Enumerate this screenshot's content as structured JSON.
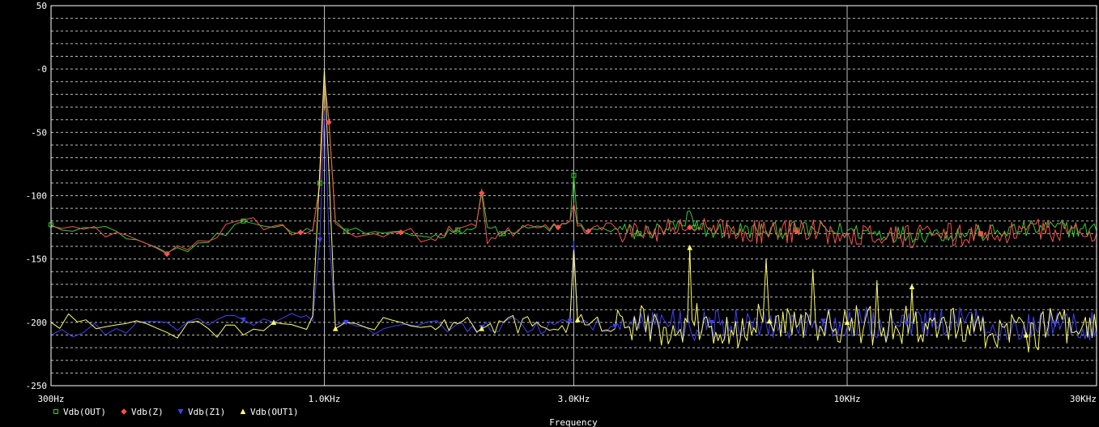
{
  "chart_data": {
    "type": "line",
    "title": "",
    "xlabel": "Frequency",
    "ylabel": "",
    "x_scale": "log",
    "xlim_hz": [
      300,
      30000
    ],
    "ylim": [
      -250,
      50
    ],
    "grid": true,
    "legend_position": "bottom-left",
    "x_ticks": [
      {
        "hz": 300,
        "label": "300Hz"
      },
      {
        "hz": 1000,
        "label": "1.0KHz"
      },
      {
        "hz": 3000,
        "label": "3.0KHz"
      },
      {
        "hz": 10000,
        "label": "10KHz"
      },
      {
        "hz": 30000,
        "label": "30KHz"
      }
    ],
    "y_ticks": [
      {
        "v": 50,
        "label": "50"
      },
      {
        "v": 0,
        "label": "-0"
      },
      {
        "v": -50,
        "label": "-50"
      },
      {
        "v": -100,
        "label": "-100"
      },
      {
        "v": -150,
        "label": "-150"
      },
      {
        "v": -200,
        "label": "-200"
      },
      {
        "v": -250,
        "label": "-250"
      }
    ],
    "series": [
      {
        "name": "Vdb(OUT)",
        "color": "#32cd32",
        "marker": "square",
        "noise": 5,
        "x": [
          300,
          400,
          500,
          600,
          700,
          800,
          900,
          950,
          980,
          1000,
          1020,
          1050,
          1100,
          1200,
          1400,
          1600,
          1800,
          1950,
          2000,
          2050,
          2200,
          2500,
          2800,
          2950,
          3000,
          3050,
          3200,
          3600,
          4000,
          4500,
          4900,
          5000,
          5100,
          5600,
          6000,
          7000,
          8000,
          10000,
          12000,
          15000,
          18000,
          20000,
          25000,
          30000
        ],
        "y": [
          -123,
          -128,
          -145,
          -137,
          -120,
          -125,
          -130,
          -128,
          -90,
          -6,
          -40,
          -120,
          -128,
          -130,
          -128,
          -133,
          -127,
          -125,
          -95,
          -125,
          -130,
          -125,
          -126,
          -120,
          -84,
          -122,
          -128,
          -126,
          -130,
          -126,
          -124,
          -112,
          -125,
          -128,
          -127,
          -128,
          -127,
          -128,
          -130,
          -130,
          -130,
          -128,
          -125,
          -128
        ]
      },
      {
        "name": "Vdb(Z)",
        "color": "#ff5050",
        "marker": "diamond",
        "noise": 7,
        "x": [
          300,
          400,
          500,
          600,
          700,
          800,
          900,
          950,
          980,
          1000,
          1020,
          1050,
          1100,
          1200,
          1400,
          1600,
          1800,
          1950,
          2000,
          2050,
          2200,
          2500,
          2800,
          2950,
          3000,
          3050,
          3200,
          3600,
          4000,
          4500,
          5000,
          5500,
          6000,
          7000,
          8000,
          10000,
          12000,
          15000,
          18000,
          20000,
          25000,
          30000
        ],
        "y": [
          -124,
          -129,
          -146,
          -136,
          -119,
          -124,
          -129,
          -127,
          -92,
          -8,
          -42,
          -122,
          -128,
          -131,
          -129,
          -134,
          -126,
          -124,
          -98,
          -138,
          -130,
          -124,
          -125,
          -120,
          -106,
          -124,
          -128,
          -125,
          -131,
          -127,
          -125,
          -128,
          -127,
          -129,
          -128,
          -129,
          -131,
          -132,
          -130,
          -129,
          -127,
          -130
        ]
      },
      {
        "name": "Vdb(Z1)",
        "color": "#4040ff",
        "marker": "triangle-down",
        "noise": 9,
        "x": [
          300,
          400,
          500,
          600,
          700,
          800,
          900,
          950,
          980,
          1000,
          1020,
          1050,
          1100,
          1300,
          1500,
          1800,
          2000,
          2200,
          2500,
          2800,
          2950,
          3000,
          3050,
          3200,
          3600,
          4000,
          4500,
          5000,
          5500,
          6000,
          7000,
          8000,
          9000,
          10000,
          11000,
          12000,
          13000,
          15000,
          18000,
          20000,
          25000,
          30000
        ],
        "y": [
          -210,
          -205,
          -200,
          -202,
          -198,
          -200,
          -196,
          -199,
          -135,
          -33,
          -130,
          -202,
          -200,
          -205,
          -203,
          -201,
          -204,
          -200,
          -206,
          -200,
          -199,
          -136,
          -198,
          -201,
          -203,
          -205,
          -200,
          -204,
          -200,
          -203,
          -201,
          -205,
          -199,
          -203,
          -200,
          -204,
          -201,
          -202,
          -200,
          -203,
          -201,
          -204
        ]
      },
      {
        "name": "Vdb(OUT1)",
        "color": "#ffff66",
        "marker": "triangle-up",
        "noise": 11,
        "x": [
          300,
          350,
          400,
          500,
          600,
          700,
          800,
          900,
          950,
          980,
          1000,
          1020,
          1050,
          1100,
          1200,
          1400,
          1600,
          1800,
          2000,
          2200,
          2500,
          2800,
          2950,
          3000,
          3050,
          3200,
          3600,
          4000,
          4500,
          4950,
          5000,
          5050,
          5500,
          6000,
          6900,
          7000,
          7100,
          8000,
          8500,
          8600,
          8700,
          9500,
          10000,
          11300,
          11400,
          11500,
          12500,
          13200,
          13300,
          13400,
          15000,
          17000,
          18000,
          20000,
          22000,
          25000,
          28000,
          30000
        ],
        "y": [
          -200,
          -198,
          -202,
          -208,
          -205,
          -210,
          -200,
          -204,
          -195,
          -80,
          0,
          -80,
          -205,
          -200,
          -204,
          -200,
          -203,
          -201,
          -205,
          -200,
          -203,
          -206,
          -198,
          -143,
          -198,
          -202,
          -205,
          -200,
          -204,
          -200,
          -141,
          -198,
          -203,
          -206,
          -200,
          -150,
          -199,
          -204,
          -202,
          -158,
          -200,
          -205,
          -200,
          -203,
          -167,
          -200,
          -206,
          -200,
          -172,
          -201,
          -205,
          -202,
          -207,
          -204,
          -210,
          -203,
          -206,
          -208
        ]
      }
    ]
  }
}
